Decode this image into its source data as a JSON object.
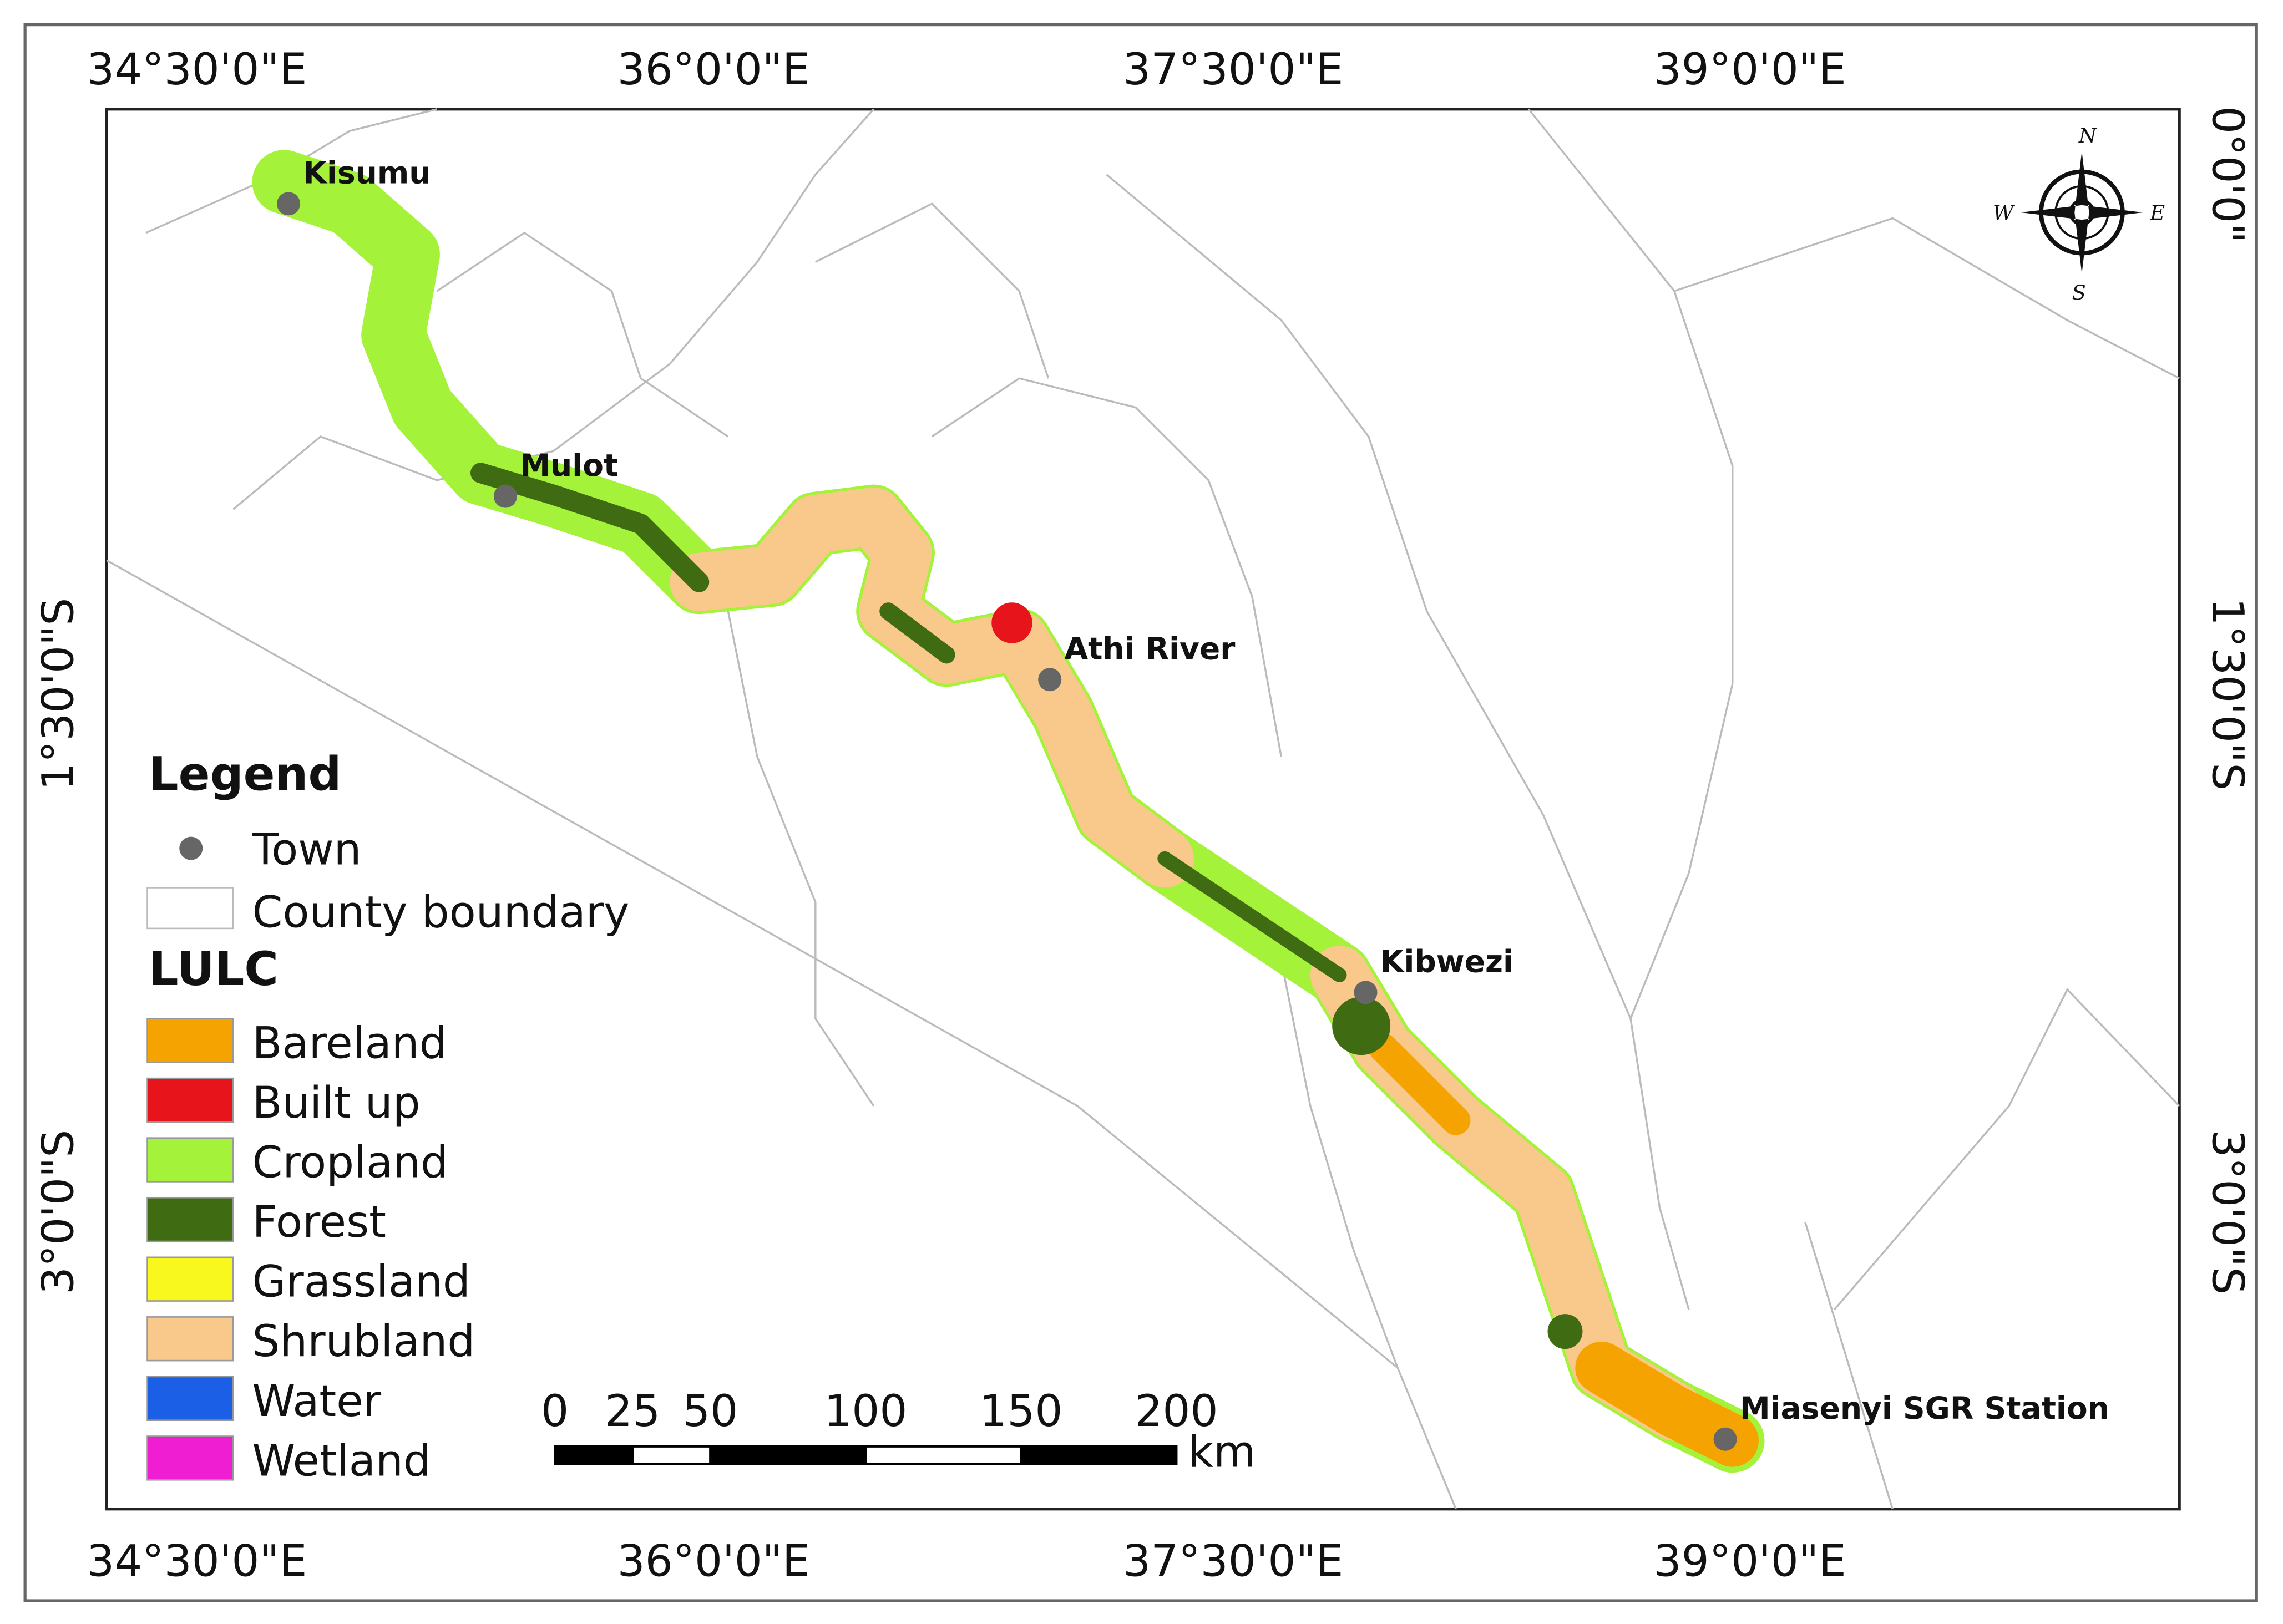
{
  "map": {
    "top_axis_labels": [
      "34°30'0\"E",
      "36°0'0\"E",
      "37°30'0\"E",
      "39°0'0\"E"
    ],
    "bottom_axis_labels": [
      "34°30'0\"E",
      "36°0'0\"E",
      "37°30'0\"E",
      "39°0'0\"E"
    ],
    "left_axis_labels": [
      "1°30'0\"S",
      "3°0'0\"S"
    ],
    "right_axis_labels": [
      "0°0'0\"",
      "1°30'0\"S",
      "3°0'0\"S"
    ],
    "towns": [
      "Kisumu",
      "Mulot",
      "Athi River",
      "Kibwezi",
      "Miasenyi SGR Station"
    ],
    "compass": {
      "n": "N",
      "e": "E",
      "s": "S",
      "w": "W"
    },
    "legend": {
      "title": "Legend",
      "town": "Town",
      "county_boundary": "County boundary",
      "lulc_title": "LULC",
      "lulc": [
        {
          "label": "Bareland",
          "color": "#f5a300"
        },
        {
          "label": "Built up",
          "color": "#e8141c"
        },
        {
          "label": "Cropland",
          "color": "#a4f23a"
        },
        {
          "label": "Forest",
          "color": "#3f6b12"
        },
        {
          "label": "Grassland",
          "color": "#f8f81e"
        },
        {
          "label": "Shrubland",
          "color": "#f8c98a"
        },
        {
          "label": "Water",
          "color": "#1a5fe6"
        },
        {
          "label": "Wetland",
          "color": "#f01ed2"
        }
      ]
    },
    "scale_bar": {
      "labels": [
        0,
        25,
        50,
        100,
        150,
        200
      ],
      "unit": "km"
    }
  }
}
